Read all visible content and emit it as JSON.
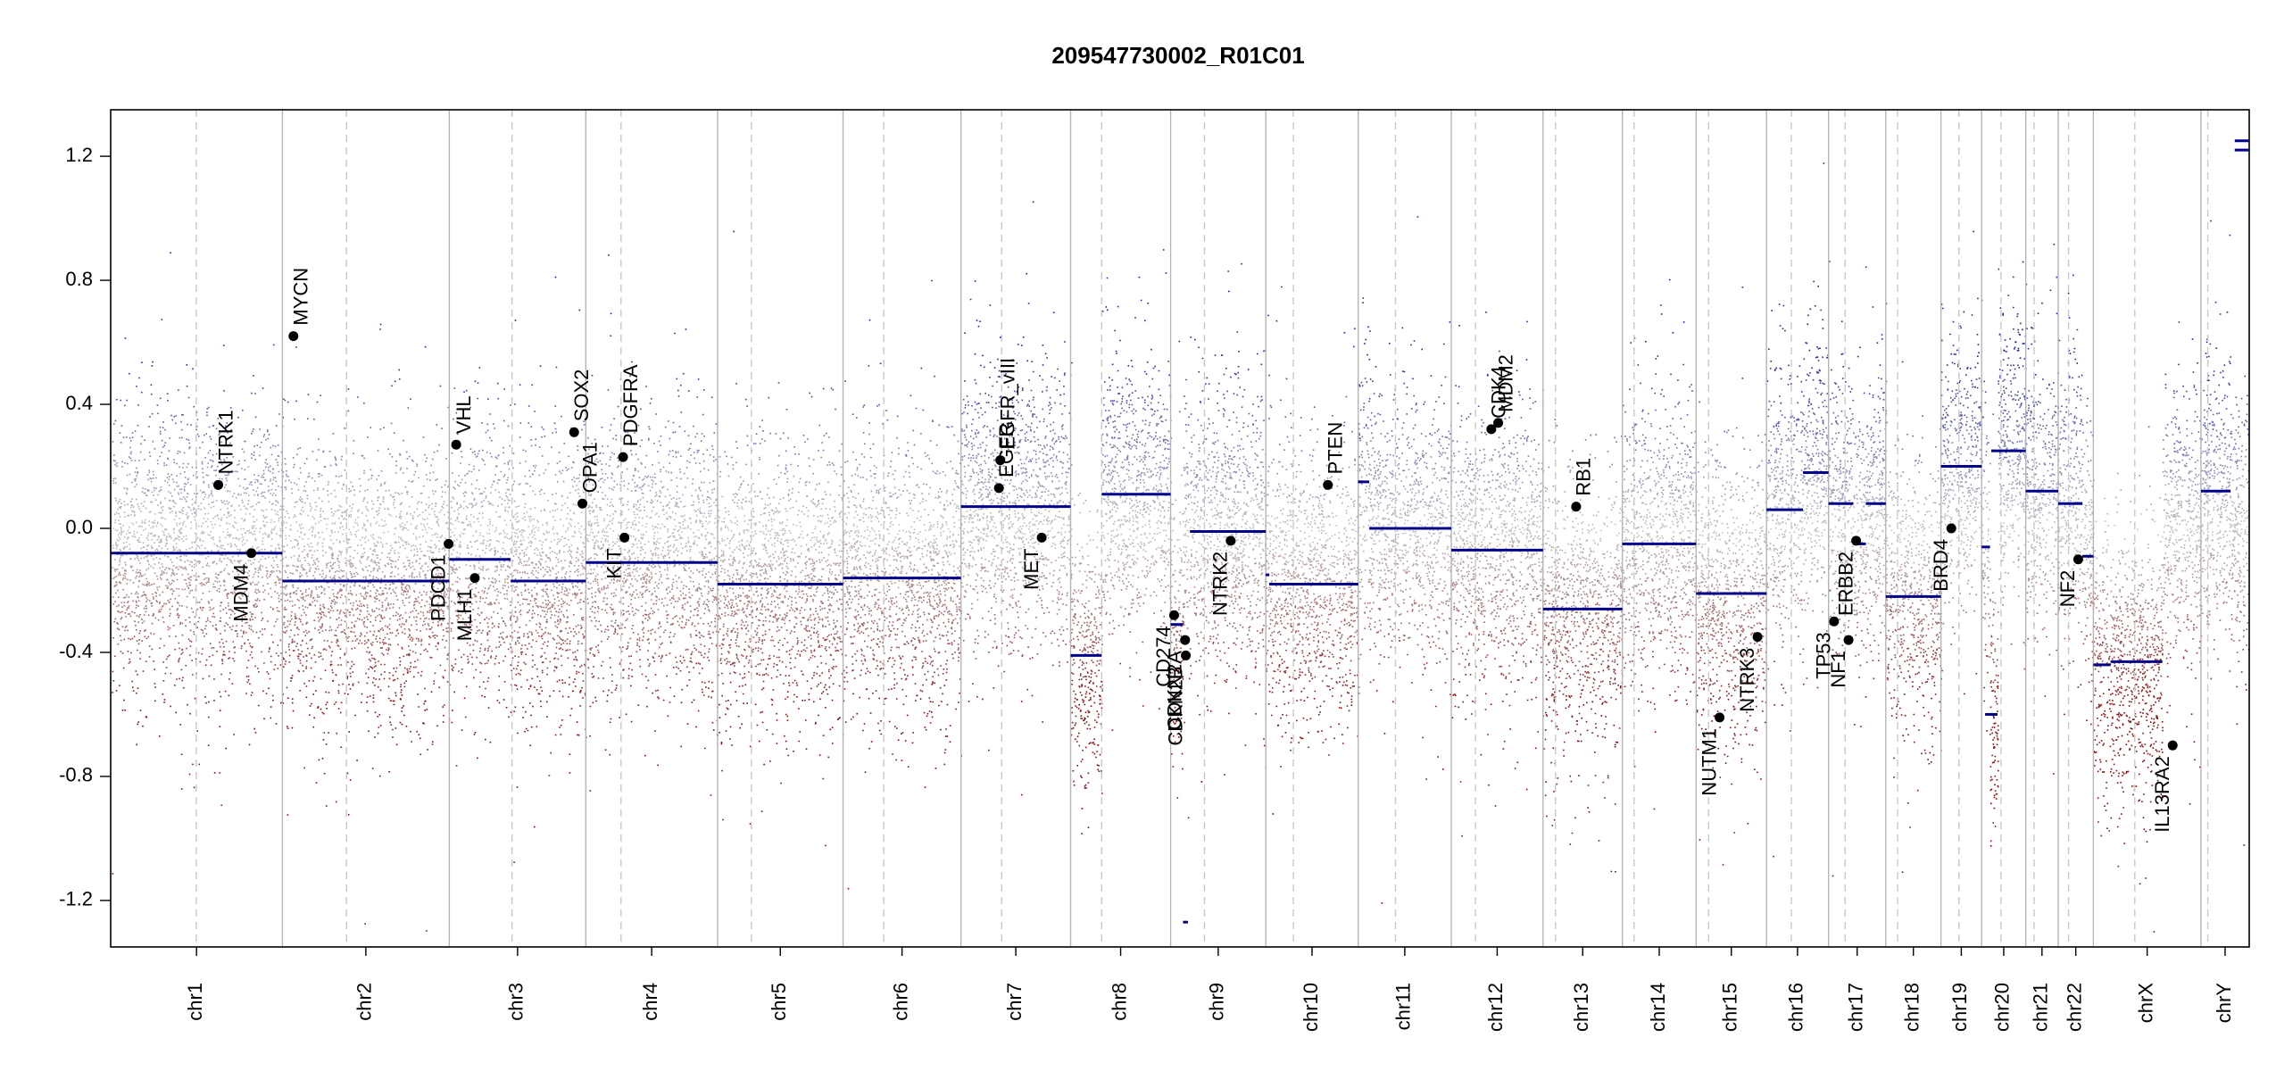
{
  "chart_data": {
    "type": "scatter",
    "title": "209547730002_R01C01",
    "xlabel": "",
    "ylabel": "",
    "ylim": [
      -1.35,
      1.35
    ],
    "y_ticks": [
      -1.2,
      -0.8,
      -0.4,
      0.0,
      0.4,
      0.8,
      1.2
    ],
    "y_tick_labels": [
      "-1.2",
      "-0.8",
      "-0.4",
      "0.0",
      "0.4",
      "0.8",
      "1.2"
    ],
    "genome_length_mb": 3101,
    "chromosomes": [
      {
        "name": "chr1",
        "start": 0,
        "end": 249,
        "centromere": 124
      },
      {
        "name": "chr2",
        "start": 249,
        "end": 491,
        "centromere": 342
      },
      {
        "name": "chr3",
        "start": 491,
        "end": 689,
        "centromere": 582
      },
      {
        "name": "chr4",
        "start": 689,
        "end": 880,
        "centromere": 740
      },
      {
        "name": "chr5",
        "start": 880,
        "end": 1062,
        "centromere": 929
      },
      {
        "name": "chr6",
        "start": 1062,
        "end": 1233,
        "centromere": 1121
      },
      {
        "name": "chr7",
        "start": 1233,
        "end": 1392,
        "centromere": 1292
      },
      {
        "name": "chr8",
        "start": 1392,
        "end": 1537,
        "centromere": 1437
      },
      {
        "name": "chr9",
        "start": 1537,
        "end": 1675,
        "centromere": 1586
      },
      {
        "name": "chr10",
        "start": 1675,
        "end": 1809,
        "centromere": 1715
      },
      {
        "name": "chr11",
        "start": 1809,
        "end": 1944,
        "centromere": 1863
      },
      {
        "name": "chr12",
        "start": 1944,
        "end": 2077,
        "centromere": 1979
      },
      {
        "name": "chr13",
        "start": 2077,
        "end": 2192,
        "centromere": 2095
      },
      {
        "name": "chr14",
        "start": 2192,
        "end": 2299,
        "centromere": 2209
      },
      {
        "name": "chr15",
        "start": 2299,
        "end": 2401,
        "centromere": 2317
      },
      {
        "name": "chr16",
        "start": 2401,
        "end": 2491,
        "centromere": 2437
      },
      {
        "name": "chr17",
        "start": 2491,
        "end": 2574,
        "centromere": 2515
      },
      {
        "name": "chr18",
        "start": 2574,
        "end": 2654,
        "centromere": 2591
      },
      {
        "name": "chr19",
        "start": 2654,
        "end": 2713,
        "centromere": 2680
      },
      {
        "name": "chr20",
        "start": 2713,
        "end": 2777,
        "centromere": 2741
      },
      {
        "name": "chr21",
        "start": 2777,
        "end": 2824,
        "centromere": 2789
      },
      {
        "name": "chr22",
        "start": 2824,
        "end": 2875,
        "centromere": 2839
      },
      {
        "name": "chrX",
        "start": 2875,
        "end": 3031,
        "centromere": 2935
      },
      {
        "name": "chrY",
        "start": 3031,
        "end": 3101,
        "centromere": 3041
      }
    ],
    "segments": [
      {
        "start": 0,
        "end": 249,
        "y": -0.08
      },
      {
        "start": 249,
        "end": 491,
        "y": -0.17
      },
      {
        "start": 491,
        "end": 580,
        "y": -0.1
      },
      {
        "start": 580,
        "end": 689,
        "y": -0.17
      },
      {
        "start": 689,
        "end": 880,
        "y": -0.11
      },
      {
        "start": 880,
        "end": 1062,
        "y": -0.18
      },
      {
        "start": 1062,
        "end": 1233,
        "y": -0.16
      },
      {
        "start": 1233,
        "end": 1392,
        "y": 0.07
      },
      {
        "start": 1392,
        "end": 1437,
        "y": -0.41
      },
      {
        "start": 1437,
        "end": 1537,
        "y": 0.11
      },
      {
        "start": 1537,
        "end": 1555,
        "y": -0.31
      },
      {
        "start": 1555,
        "end": 1562,
        "y": -1.27
      },
      {
        "start": 1565,
        "end": 1675,
        "y": -0.01
      },
      {
        "start": 1675,
        "end": 1680,
        "y": -0.15
      },
      {
        "start": 1680,
        "end": 1809,
        "y": -0.18
      },
      {
        "start": 1809,
        "end": 1809,
        "y": 0.15
      },
      {
        "start": 1809,
        "end": 1825,
        "y": 0.15
      },
      {
        "start": 1825,
        "end": 1944,
        "y": 0.0
      },
      {
        "start": 1944,
        "end": 2077,
        "y": -0.07
      },
      {
        "start": 2077,
        "end": 2192,
        "y": -0.26
      },
      {
        "start": 2192,
        "end": 2299,
        "y": -0.05
      },
      {
        "start": 2299,
        "end": 2401,
        "y": -0.21
      },
      {
        "start": 2401,
        "end": 2454,
        "y": 0.06
      },
      {
        "start": 2454,
        "end": 2491,
        "y": 0.18
      },
      {
        "start": 2491,
        "end": 2527,
        "y": 0.08
      },
      {
        "start": 2527,
        "end": 2545,
        "y": -0.05
      },
      {
        "start": 2545,
        "end": 2574,
        "y": 0.08
      },
      {
        "start": 2574,
        "end": 2654,
        "y": -0.22
      },
      {
        "start": 2654,
        "end": 2713,
        "y": 0.2
      },
      {
        "start": 2713,
        "end": 2725,
        "y": -0.06
      },
      {
        "start": 2727,
        "end": 2777,
        "y": 0.25
      },
      {
        "start": 2718,
        "end": 2736,
        "y": -0.6
      },
      {
        "start": 2777,
        "end": 2824,
        "y": 0.12
      },
      {
        "start": 2824,
        "end": 2859,
        "y": 0.08
      },
      {
        "start": 2859,
        "end": 2875,
        "y": -0.09
      },
      {
        "start": 2875,
        "end": 2900,
        "y": -0.44
      },
      {
        "start": 2900,
        "end": 2975,
        "y": -0.43
      },
      {
        "start": 3031,
        "end": 3074,
        "y": 0.12
      },
      {
        "start": 3080,
        "end": 3101,
        "y": 1.22
      },
      {
        "start": 3080,
        "end": 3101,
        "y": 1.25
      }
    ],
    "genes": [
      {
        "name": "NTRK1",
        "x": 156,
        "y": 0.14,
        "label_side": "above"
      },
      {
        "name": "MDM4",
        "x": 204,
        "y": -0.08,
        "label_side": "below"
      },
      {
        "name": "MYCN",
        "x": 265,
        "y": 0.62,
        "label_side": "above"
      },
      {
        "name": "PDCD1",
        "x": 490,
        "y": -0.05,
        "label_side": "below"
      },
      {
        "name": "VHL",
        "x": 501,
        "y": 0.27,
        "label_side": "above"
      },
      {
        "name": "MLH1",
        "x": 528,
        "y": -0.16,
        "label_side": "below"
      },
      {
        "name": "SOX2",
        "x": 672,
        "y": 0.31,
        "label_side": "above"
      },
      {
        "name": "OPA1",
        "x": 684,
        "y": 0.08,
        "label_side": "above"
      },
      {
        "name": "PDGFRA",
        "x": 743,
        "y": 0.23,
        "label_side": "above"
      },
      {
        "name": "KIT",
        "x": 745,
        "y": -0.03,
        "label_side": "below"
      },
      {
        "name": "EGFR",
        "x": 1288,
        "y": 0.13,
        "label_side": "above"
      },
      {
        "name": "EGFR_vIII",
        "x": 1290,
        "y": 0.22,
        "label_side": "above"
      },
      {
        "name": "MET",
        "x": 1350,
        "y": -0.03,
        "label_side": "below"
      },
      {
        "name": "CD274",
        "x": 1542,
        "y": -0.28,
        "label_side": "below"
      },
      {
        "name": "CDKN2A",
        "x": 1558,
        "y": -0.36,
        "label_side": "below"
      },
      {
        "name": "CDKN2B",
        "x": 1559,
        "y": -0.41,
        "label_side": "below"
      },
      {
        "name": "NTRK2",
        "x": 1624,
        "y": -0.04,
        "label_side": "below"
      },
      {
        "name": "PTEN",
        "x": 1765,
        "y": 0.14,
        "label_side": "above"
      },
      {
        "name": "CDK4",
        "x": 2002,
        "y": 0.32,
        "label_side": "above"
      },
      {
        "name": "MDM2",
        "x": 2012,
        "y": 0.34,
        "label_side": "above"
      },
      {
        "name": "RB1",
        "x": 2125,
        "y": 0.07,
        "label_side": "above"
      },
      {
        "name": "NUTM1",
        "x": 2333,
        "y": -0.61,
        "label_side": "below"
      },
      {
        "name": "NTRK3",
        "x": 2388,
        "y": -0.35,
        "label_side": "below"
      },
      {
        "name": "TP53",
        "x": 2499,
        "y": -0.3,
        "label_side": "below"
      },
      {
        "name": "NF1",
        "x": 2520,
        "y": -0.36,
        "label_side": "below"
      },
      {
        "name": "ERBB2",
        "x": 2531,
        "y": -0.04,
        "label_side": "below"
      },
      {
        "name": "BRD4",
        "x": 2669,
        "y": 0.0,
        "label_side": "below"
      },
      {
        "name": "NF2",
        "x": 2853,
        "y": -0.1,
        "label_side": "below"
      },
      {
        "name": "IL13RA2",
        "x": 2990,
        "y": -0.7,
        "label_side": "below"
      }
    ],
    "colors": {
      "gain": "#1f24a8",
      "loss": "#8b0e0e",
      "neutral": "#c0c0c0",
      "segment": "#00008b",
      "gene": "#000000",
      "chr_border": "#b5b5b5",
      "centromere": "#c8c8c8"
    },
    "legend": "none",
    "grid": false
  }
}
